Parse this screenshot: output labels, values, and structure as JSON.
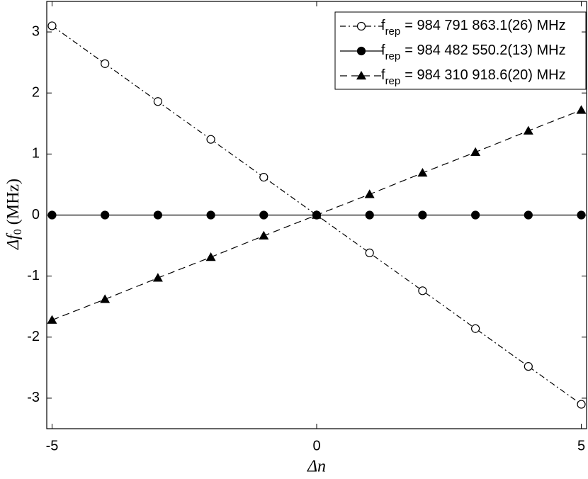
{
  "chart_data": {
    "type": "line",
    "xlabel": {
      "main": "Δn"
    },
    "ylabel": {
      "main": "Δf",
      "sub": "0",
      "rest": "(MHz)"
    },
    "x": [
      -5,
      -4,
      -3,
      -2,
      -1,
      0,
      1,
      2,
      3,
      4,
      5
    ],
    "xlim": [
      -5.1,
      5.1
    ],
    "ylim": [
      -3.5,
      3.5
    ],
    "xticks": [
      -5,
      0,
      5
    ],
    "yticks": [
      -3,
      -2,
      -1,
      0,
      1,
      2,
      3
    ],
    "legend": "upper right",
    "series": [
      {
        "name": {
          "main": "f",
          "sub": "rep",
          "rest": "= 984 791 863.1(26) MHz"
        },
        "color": "#000000",
        "line_style": "dashdot",
        "marker": "open-circle",
        "values": [
          3.1,
          2.48,
          1.86,
          1.24,
          0.62,
          0,
          -0.62,
          -1.24,
          -1.86,
          -2.48,
          -3.1
        ]
      },
      {
        "name": {
          "main": "f",
          "sub": "rep",
          "rest": "= 984 482 550.2(13) MHz"
        },
        "color": "#000000",
        "line_style": "solid",
        "marker": "filled-circle",
        "values": [
          0,
          0,
          0,
          0,
          0,
          0,
          0,
          0,
          0,
          0,
          0
        ]
      },
      {
        "name": {
          "main": "f",
          "sub": "rep",
          "rest": "= 984 310 918.6(20) MHz"
        },
        "color": "#000000",
        "line_style": "dashed",
        "marker": "filled-triangle",
        "values": [
          -1.72,
          -1.38,
          -1.03,
          -0.69,
          -0.34,
          0,
          0.34,
          0.69,
          1.03,
          1.38,
          1.72
        ]
      }
    ]
  }
}
